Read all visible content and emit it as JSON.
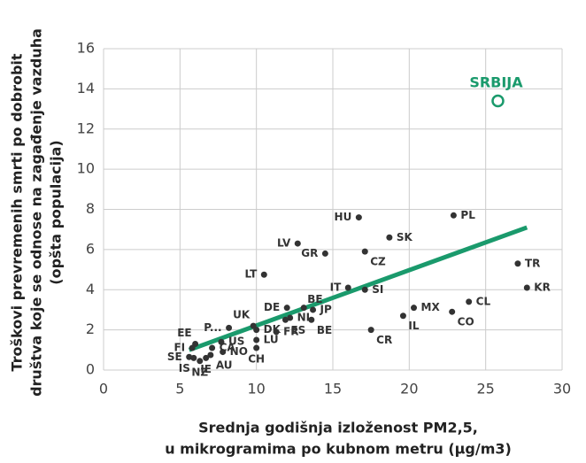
{
  "chart_data": {
    "type": "scatter",
    "xlabel": [
      "Srednja godišnja izloženost PM2,5,",
      "u mikrogramima po kubnom metru (µg/m3)"
    ],
    "ylabel": [
      "Troškovi prevremenih smrti po dobrobit",
      "društva koje se odnose na zagađenje vazduha",
      "(opšta populacija)"
    ],
    "xlim": [
      0,
      30
    ],
    "xticks": [
      0,
      5,
      10,
      15,
      20,
      25,
      30
    ],
    "ylim": [
      0,
      16
    ],
    "yticks": [
      0,
      2,
      4,
      6,
      8,
      10,
      12,
      14,
      16
    ],
    "grid": true,
    "color": "#333333",
    "names": [
      "HU",
      "PL",
      "SK",
      "LV",
      "GR",
      "CZ",
      "LT",
      "TR",
      "KR",
      "IT",
      "SI",
      "DE",
      "BE",
      "MX",
      "CL",
      "CO",
      "IL",
      "JP",
      "NL",
      "ES",
      "BE",
      "P...",
      "UK",
      "DK",
      "FR",
      "LU",
      "CH",
      "CR",
      "EE",
      "CA",
      "US",
      "FI",
      "NO",
      "AU",
      "SE",
      "IS",
      "NZ",
      "IE"
    ],
    "x": [
      16.7,
      22.9,
      18.7,
      12.7,
      14.5,
      17.1,
      10.5,
      27.1,
      27.7,
      16.0,
      17.1,
      12.0,
      13.1,
      20.3,
      23.9,
      22.8,
      19.6,
      13.7,
      12.2,
      11.9,
      13.6,
      8.2,
      9.8,
      10.0,
      11.3,
      10.0,
      10.0,
      17.5,
      6.0,
      7.1,
      7.7,
      5.8,
      7.8,
      7.0,
      5.6,
      5.9,
      6.3,
      6.7
    ],
    "y": [
      7.6,
      7.7,
      6.6,
      6.3,
      5.8,
      5.9,
      4.75,
      5.3,
      4.1,
      4.1,
      4.0,
      3.1,
      3.1,
      3.1,
      3.4,
      2.9,
      2.7,
      3.0,
      2.6,
      2.5,
      2.5,
      2.1,
      2.2,
      2.0,
      1.9,
      1.5,
      1.1,
      2.0,
      1.3,
      1.1,
      1.4,
      1.1,
      0.9,
      0.75,
      0.65,
      0.6,
      0.45,
      0.6
    ],
    "highlight": {
      "name": "SRBIJA",
      "x": 25.8,
      "y": 13.4,
      "color": "#1a9a6c"
    },
    "trendline": {
      "x": [
        5.6,
        27.7
      ],
      "y": [
        1.0,
        7.1
      ],
      "color": "#1a9a6c"
    }
  }
}
